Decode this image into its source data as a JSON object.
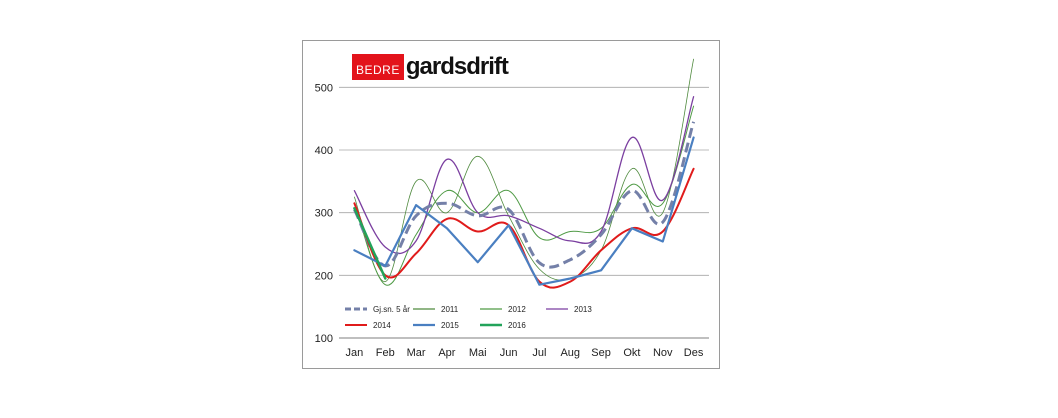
{
  "logo": {
    "red_part": "BEDRE",
    "text_part": "gardsdrift"
  },
  "colors": {
    "avg": "#7480a8",
    "s2011": "#4f8a3e",
    "s2012": "#4f9a45",
    "s2013": "#7b3fa0",
    "s2014": "#e01b1b",
    "s2015": "#4a7fc1",
    "s2016": "#22a35a",
    "grid": "#a6a6a6"
  },
  "chart_data": {
    "type": "line",
    "categories": [
      "Jan",
      "Feb",
      "Mar",
      "Apr",
      "Mai",
      "Jun",
      "Jul",
      "Aug",
      "Sep",
      "Okt",
      "Nov",
      "Des"
    ],
    "ylim": [
      100,
      550
    ],
    "yticks": [
      100,
      200,
      300,
      400,
      500
    ],
    "grid": true,
    "legend_position": "bottom-left",
    "series": [
      {
        "name": "Gj.sn. 5 år",
        "key": "avg",
        "style": "dashed",
        "width": 3,
        "values": [
          305,
          215,
          295,
          315,
          295,
          305,
          220,
          225,
          265,
          335,
          285,
          445
        ]
      },
      {
        "name": "2011",
        "key": "s2011",
        "style": "solid",
        "width": 0.8,
        "values": [
          325,
          190,
          350,
          300,
          390,
          295,
          210,
          195,
          240,
          370,
          300,
          545
        ]
      },
      {
        "name": "2012",
        "key": "s2012",
        "style": "solid",
        "width": 1,
        "values": [
          315,
          185,
          265,
          335,
          300,
          335,
          260,
          270,
          275,
          345,
          315,
          470
        ]
      },
      {
        "name": "2013",
        "key": "s2013",
        "style": "solid",
        "width": 1.3,
        "values": [
          335,
          245,
          255,
          385,
          300,
          295,
          275,
          255,
          270,
          420,
          320,
          485
        ]
      },
      {
        "name": "2014",
        "key": "s2014",
        "style": "solid",
        "width": 2,
        "values": [
          315,
          200,
          235,
          290,
          270,
          280,
          190,
          190,
          240,
          275,
          270,
          370
        ]
      },
      {
        "name": "2015",
        "key": "s2015",
        "style": "solid",
        "width": 2.2,
        "values": [
          240,
          215,
          312,
          275,
          221,
          280,
          185,
          195,
          208,
          275,
          254,
          420
        ]
      },
      {
        "name": "2016",
        "key": "s2016",
        "style": "solid",
        "width": 2.5,
        "values": [
          307,
          195,
          null,
          null,
          null,
          null,
          null,
          null,
          null,
          null,
          null,
          null
        ]
      }
    ]
  }
}
